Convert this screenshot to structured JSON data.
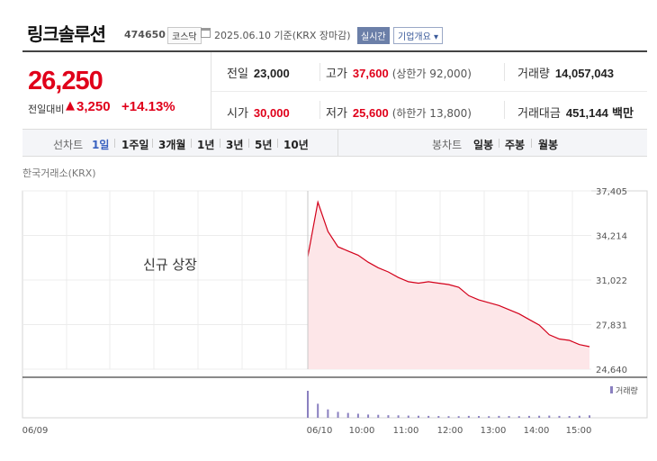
{
  "header": {
    "name": "링크솔루션",
    "code": "474650",
    "market": "코스닥",
    "date_text": "2025.06.10 기준(KRX 장마감)",
    "realtime": "실시간",
    "company_info": "기업개요"
  },
  "summary": {
    "price": "26,250",
    "change_label": "전일대비",
    "change_arrow": "▲",
    "change_value": "3,250",
    "change_pct": "+14.13%",
    "prev_close_label": "전일",
    "prev_close": "23,000",
    "high_label": "고가",
    "high": "37,600",
    "upper_limit": "(상한가 92,000)",
    "volume_label": "거래량",
    "volume": "14,057,043",
    "open_label": "시가",
    "open": "30,000",
    "low_label": "저가",
    "low": "25,600",
    "lower_limit": "(하한가 13,800)",
    "amount_label": "거래대금",
    "amount": "451,144",
    "amount_unit": "백만"
  },
  "tabs": {
    "line_chart_label": "선차트",
    "line_periods": [
      "1일",
      "1주일",
      "3개월",
      "1년",
      "3년",
      "5년",
      "10년"
    ],
    "active_period": "1일",
    "candle_chart_label": "봉차트",
    "candle_periods": [
      "일봉",
      "주봉",
      "월봉"
    ]
  },
  "chart_data": {
    "type": "area",
    "source_label": "한국거래소(KRX)",
    "annotation": "신규 상장",
    "volume_legend": "거래량",
    "y_ticks": [
      "37,405",
      "34,214",
      "31,022",
      "27,831",
      "24,640"
    ],
    "ylim": [
      24640,
      37405
    ],
    "x_ticks": [
      "06/09",
      "06/10",
      "10:00",
      "11:00",
      "12:00",
      "13:00",
      "14:00",
      "15:00"
    ],
    "x": [
      "09:00",
      "09:05",
      "09:10",
      "09:20",
      "09:30",
      "09:45",
      "10:00",
      "10:15",
      "10:30",
      "10:45",
      "11:00",
      "11:15",
      "11:30",
      "11:45",
      "12:00",
      "12:15",
      "12:30",
      "12:45",
      "13:00",
      "13:15",
      "13:30",
      "13:45",
      "14:00",
      "14:15",
      "14:30",
      "14:45",
      "15:00",
      "15:15",
      "15:30"
    ],
    "series": [
      {
        "values": [
          32700,
          36600,
          34500,
          33400,
          33100,
          32800,
          32300,
          31900,
          31600,
          31200,
          30900,
          30800,
          30900,
          30800,
          30700,
          30500,
          29900,
          29600,
          29400,
          29200,
          28900,
          28600,
          28200,
          27800,
          27100,
          26800,
          26700,
          26400,
          26250
        ]
      }
    ],
    "volume_values": [
      1000,
      520,
      310,
      220,
      180,
      150,
      120,
      110,
      95,
      90,
      80,
      75,
      70,
      65,
      60,
      60,
      70,
      65,
      60,
      70,
      65,
      60,
      70,
      75,
      80,
      70,
      65,
      75,
      90
    ],
    "colors": {
      "line": "#d3001a",
      "fill": "#fde6e8",
      "volume": "#8a80c0"
    },
    "grid": true
  }
}
